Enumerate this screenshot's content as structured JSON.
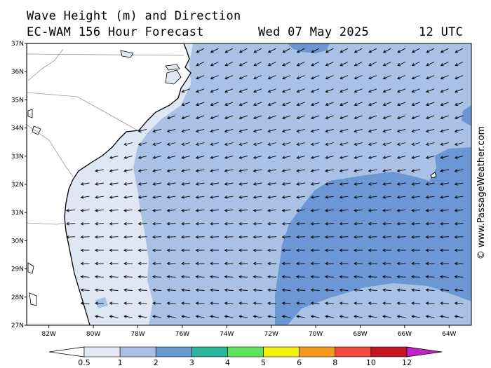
{
  "header": {
    "title": "Wave Height (m) and Direction",
    "model": "EC-WAM 156 Hour Forecast",
    "date": "Wed 07 May 2025",
    "time": "12 UTC"
  },
  "credit": "© www.PassageWeather.com",
  "map": {
    "lat_range": [
      27,
      37
    ],
    "lon_range": [
      -83,
      -63
    ],
    "lat_ticks": [
      "27N",
      "28N",
      "29N",
      "30N",
      "31N",
      "32N",
      "33N",
      "34N",
      "35N",
      "36N",
      "37N"
    ],
    "lon_ticks": [
      "82W",
      "80W",
      "78W",
      "76W",
      "74W",
      "72W",
      "70W",
      "68W",
      "66W",
      "64W"
    ],
    "land_color": "#ffffff",
    "arrow_color": "#000000",
    "arrow_direction_note": "arrows point toward the west / west-northwest"
  },
  "colorbar": {
    "labels": [
      "0.5",
      "1",
      "2",
      "3",
      "4",
      "5",
      "6",
      "8",
      "10",
      "12"
    ],
    "colors": [
      "#e3eaf6",
      "#a8c0e4",
      "#6a96d4",
      "#2bb59a",
      "#5ee35e",
      "#f5ef10",
      "#f59a18",
      "#ef4a3c",
      "#c41422",
      "#c222c8"
    ],
    "low_end_color": "#ffffff"
  }
}
